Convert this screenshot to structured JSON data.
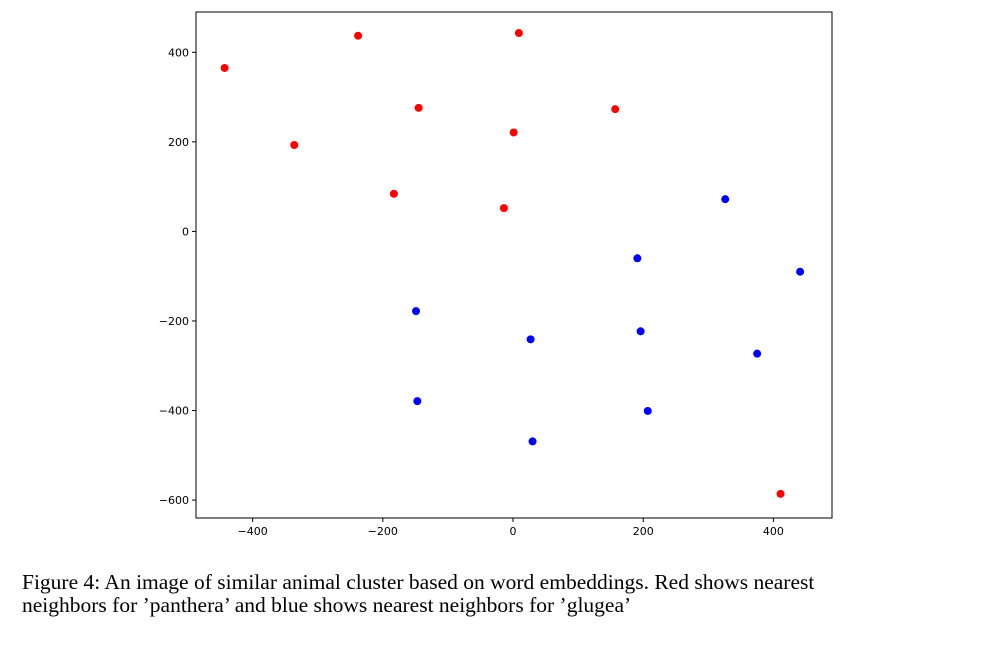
{
  "chart_data": {
    "type": "scatter",
    "title": "",
    "xlabel": "",
    "ylabel": "",
    "xlim": [
      -487,
      490
    ],
    "ylim": [
      -640,
      490
    ],
    "xticks": [
      -400,
      -200,
      0,
      200,
      400
    ],
    "yticks": [
      400,
      200,
      0,
      -200,
      -400,
      -600
    ],
    "xtick_labels": [
      "−400",
      "−200",
      "0",
      "200",
      "400"
    ],
    "ytick_labels": [
      "400",
      "200",
      "0",
      "−200",
      "−400",
      "−600"
    ],
    "grid": false,
    "series": [
      {
        "name": "panthera",
        "color": "#ff0000",
        "points": [
          [
            -443,
            365
          ],
          [
            -238,
            437
          ],
          [
            9,
            443
          ],
          [
            -145,
            276
          ],
          [
            157,
            273
          ],
          [
            1,
            221
          ],
          [
            -336,
            193
          ],
          [
            -183,
            84
          ],
          [
            -14,
            52
          ],
          [
            411,
            -586
          ]
        ]
      },
      {
        "name": "glugea",
        "color": "#0000ff",
        "points": [
          [
            326,
            72
          ],
          [
            191,
            -60
          ],
          [
            441,
            -90
          ],
          [
            -149,
            -178
          ],
          [
            196,
            -223
          ],
          [
            27,
            -241
          ],
          [
            375,
            -273
          ],
          [
            -147,
            -379
          ],
          [
            207,
            -401
          ],
          [
            30,
            -469
          ]
        ]
      }
    ]
  },
  "caption": {
    "line1": "Figure 4:  An image of similar animal cluster based on word embeddings.  Red shows nearest",
    "line2": "neighbors for ’panthera’ and blue shows nearest neighbors for ’glugea’"
  }
}
